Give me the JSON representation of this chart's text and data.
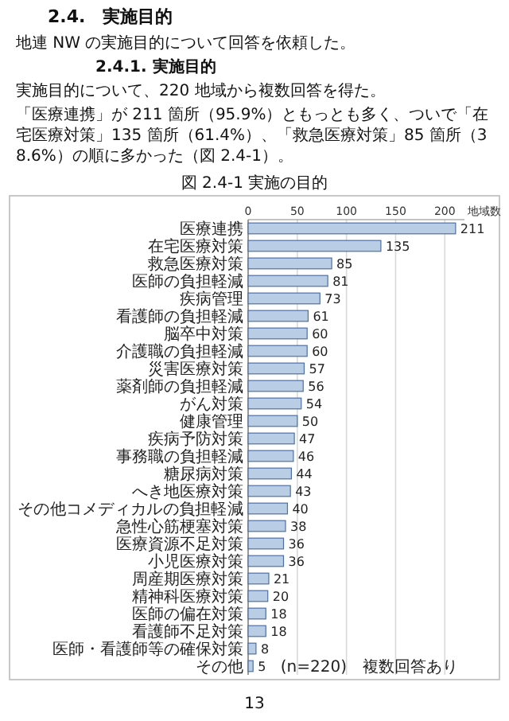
{
  "chart_data": {
    "type": "bar",
    "orientation": "horizontal",
    "title": "図 2.4-1 実施の目的",
    "xlabel": "地域数",
    "categories": [
      "医療連携",
      "在宅医療対策",
      "救急医療対策",
      "医師の負担軽減",
      "疾病管理",
      "看護師の負担軽減",
      "脳卒中対策",
      "介護職の負担軽減",
      "災害医療対策",
      "薬剤師の負担軽減",
      "がん対策",
      "健康管理",
      "疾病予防対策",
      "事務職の負担軽減",
      "糖尿病対策",
      "へき地医療対策",
      "その他コメディカルの負担軽減",
      "急性心筋梗塞対策",
      "医療資源不足対策",
      "小児医療対策",
      "周産期医療対策",
      "精神科医療対策",
      "医師の偏在対策",
      "看護師不足対策",
      "医師・看護師等の確保対策",
      "その他"
    ],
    "values": [
      211,
      135,
      85,
      81,
      73,
      61,
      60,
      60,
      57,
      56,
      54,
      50,
      47,
      46,
      44,
      43,
      40,
      38,
      36,
      36,
      21,
      20,
      18,
      18,
      8,
      5
    ],
    "color": "#b9cde5",
    "xlim": [
      0,
      220
    ],
    "xticks": [
      0,
      50,
      100,
      150,
      200
    ],
    "grid": "x",
    "data_labels": true,
    "annotations": [
      "2.4.　実施目的",
      "地連 NW の実施目的について回答を依頼した。",
      "2.4.1. 実施目的",
      "実施目的について、220 地域から複数回答を得た。",
      "「医療連携」が 211 箇所（95.9%）ともっとも多く、ついで「在宅医療対策」135 箇所（61.4%）、「救急医療対策」85 箇所（38.6%）の順に多かった（図 2.4-1）。",
      "(n=220)　複数回答あり",
      "13"
    ]
  }
}
